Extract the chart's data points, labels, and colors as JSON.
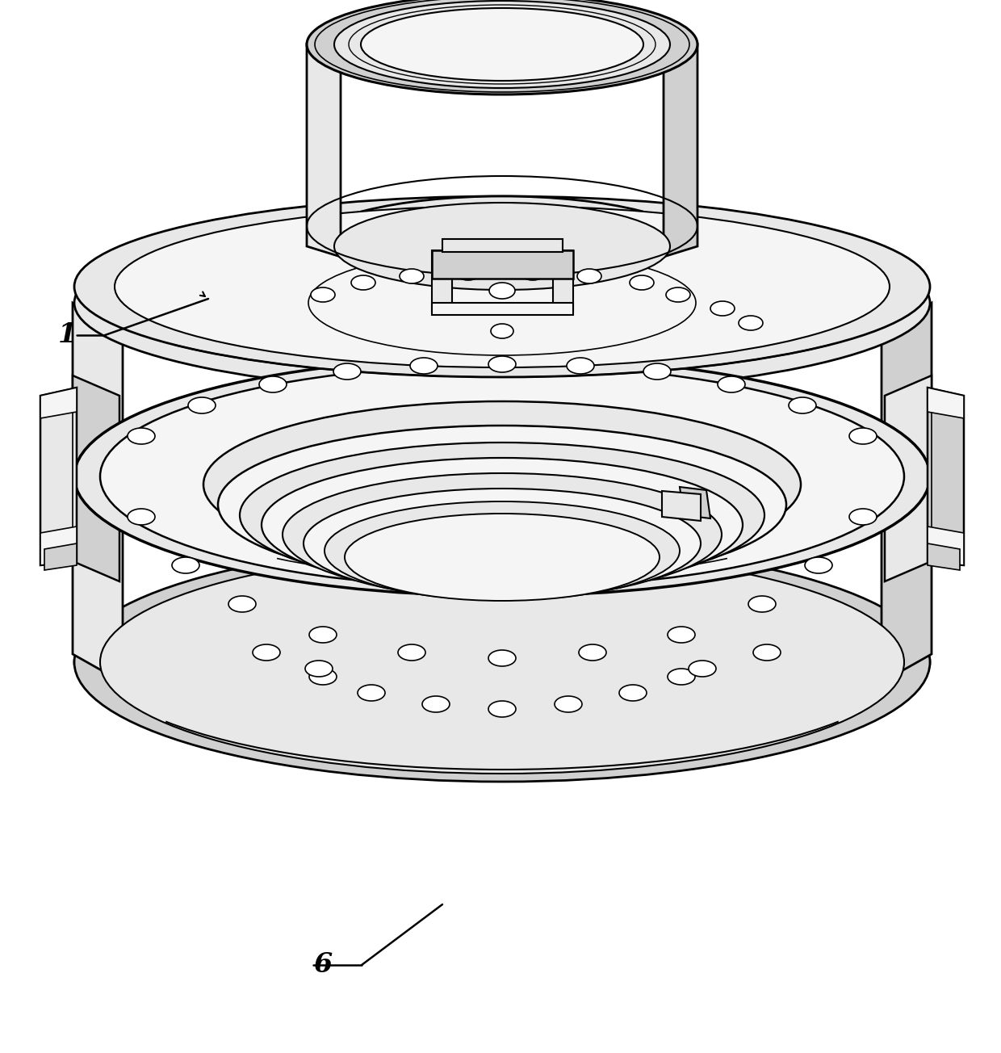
{
  "bg_color": "#ffffff",
  "line_color": "#000000",
  "light_gray": "#e8e8e8",
  "med_gray": "#d0d0d0",
  "dark_gray": "#b0b0b0",
  "white": "#ffffff",
  "near_white": "#f5f5f5",
  "label_fontsize": 24,
  "label_fontweight": "bold"
}
